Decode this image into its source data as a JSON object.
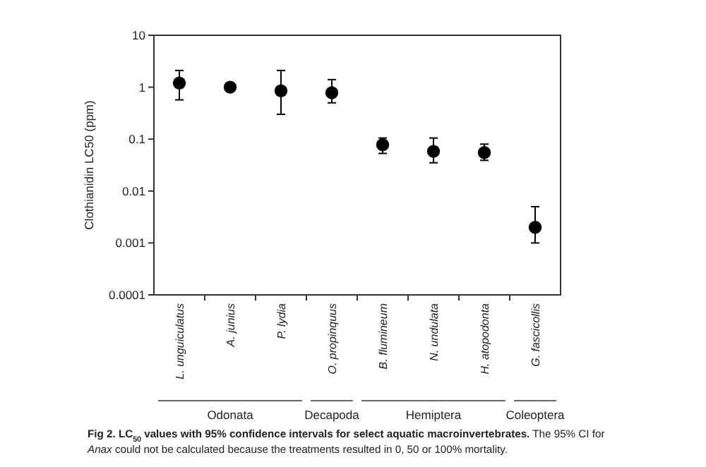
{
  "chart_data": {
    "type": "scatter",
    "title": "Fig 2. LC$_{50}$ values with 95% confidence intervals for select aquatic macroinvertebrates.",
    "ylabel": "Clothianidin LC50 (ppm)",
    "categories": [
      "L. unguiculatus",
      "A. junius",
      "P. lydia",
      "O. propinquus",
      "B. flumineum",
      "N. undulata",
      "H. atopodonta",
      "G. fascicollis"
    ],
    "series": [
      {
        "color": "#000000",
        "values": [
          1.2,
          1.0,
          0.85,
          0.78,
          0.078,
          0.058,
          0.055,
          0.002
        ],
        "errors": [
          [
            0.57,
            2.1
          ],
          null,
          [
            0.3,
            2.1
          ],
          [
            0.5,
            1.4
          ],
          [
            0.053,
            0.105
          ],
          [
            0.035,
            0.105
          ],
          [
            0.039,
            0.08
          ],
          [
            0.001,
            0.005
          ]
        ]
      }
    ],
    "log": true,
    "ylim": [
      0.0001,
      10
    ],
    "yticks": [
      0.0001,
      0.001,
      0.01,
      0.1,
      1,
      10
    ],
    "marker": "circle",
    "annotations": [
      "Odonata",
      "Decapoda",
      "Hemiptera",
      "Coleoptera",
      "The 95% CI for Anax could not be calculated because the treatments resulted in 0, 50 or 100% mortality."
    ]
  }
}
